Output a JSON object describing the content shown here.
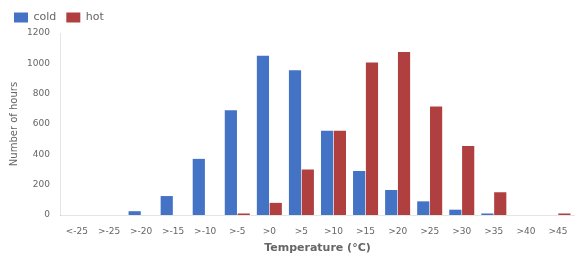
{
  "chart_data": {
    "type": "bar",
    "categories": [
      "<-25",
      ">-25",
      ">-20",
      ">-15",
      ">-10",
      ">-5",
      ">0",
      ">5",
      ">10",
      ">15",
      ">20",
      ">25",
      ">30",
      ">35",
      ">40",
      ">45"
    ],
    "series": [
      {
        "name": "cold",
        "color": "#4472C4",
        "values": [
          0,
          0,
          25,
          125,
          370,
          690,
          1050,
          955,
          555,
          290,
          165,
          90,
          35,
          10,
          0,
          0
        ]
      },
      {
        "name": "hot",
        "color": "#B04040",
        "values": [
          0,
          0,
          0,
          0,
          0,
          10,
          80,
          300,
          555,
          1005,
          1075,
          715,
          455,
          150,
          0,
          10
        ]
      }
    ],
    "xlabel": "Temperature (°C)",
    "ylabel": "Number of hours",
    "ylim": [
      0,
      1200
    ],
    "yticks": [
      0,
      200,
      400,
      600,
      800,
      1000,
      1200
    ],
    "grid": false,
    "legend": "upper left"
  }
}
